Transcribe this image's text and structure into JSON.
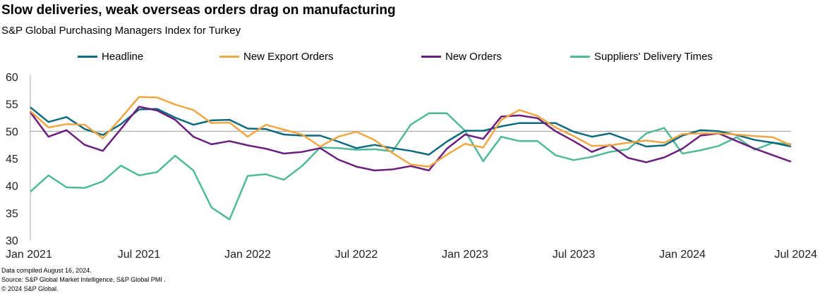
{
  "title": "Slow deliveries, weak overseas orders drag on manufacturing",
  "subtitle": "S&P Global Purchasing Managers Index for Turkey",
  "footnotes": [
    "Data compiled August 16, 2024.",
    "Source: S&P Global Market Intelligence, S&P Global PMI .",
    "© 2024 S&P Global."
  ],
  "chart_data": {
    "type": "line",
    "x_start": "Jan 2021",
    "x_end": "Jul 2024",
    "x_ticks": [
      "Jan 2021",
      "Jul 2021",
      "Jan 2022",
      "Jul 2022",
      "Jan 2023",
      "Jul 2023",
      "Jan 2024",
      "Jul 2024"
    ],
    "y_ticks": [
      30,
      35,
      40,
      45,
      50,
      55,
      60
    ],
    "ylim": [
      30,
      60
    ],
    "reference_line": 50,
    "legend_position": "top",
    "series": [
      {
        "name": "Headline",
        "color": "#0e6a7e",
        "values": [
          54.4,
          51.7,
          52.6,
          50.4,
          49.3,
          51.3,
          54.0,
          54.1,
          52.5,
          51.2,
          52.0,
          52.1,
          50.5,
          50.4,
          49.4,
          49.2,
          49.2,
          48.1,
          46.9,
          47.5,
          46.9,
          46.4,
          45.7,
          48.1,
          50.1,
          50.1,
          50.9,
          51.5,
          51.5,
          51.5,
          49.9,
          49.0,
          49.6,
          48.4,
          47.2,
          47.4,
          49.2,
          50.2,
          50.0,
          49.3,
          48.4,
          47.9,
          47.2
        ]
      },
      {
        "name": "New Export Orders",
        "color": "#f0a743",
        "values": [
          53.7,
          50.7,
          51.3,
          51.2,
          48.7,
          52.4,
          56.3,
          56.2,
          54.9,
          53.9,
          51.5,
          51.6,
          49.0,
          51.2,
          50.3,
          49.4,
          47.2,
          49.0,
          49.9,
          48.4,
          46.0,
          43.9,
          43.5,
          45.7,
          47.7,
          47.0,
          52.1,
          53.9,
          52.8,
          50.7,
          49.1,
          47.3,
          47.4,
          47.9,
          48.3,
          47.9,
          49.5,
          49.6,
          49.6,
          49.4,
          49.1,
          48.9,
          47.4
        ]
      },
      {
        "name": "New Orders",
        "color": "#6b1f7c",
        "values": [
          53.5,
          49.0,
          50.2,
          47.5,
          46.4,
          50.4,
          54.5,
          53.8,
          52.1,
          49.0,
          47.6,
          48.2,
          47.4,
          46.8,
          45.9,
          46.2,
          46.9,
          44.8,
          43.5,
          42.8,
          43.0,
          43.6,
          42.8,
          46.8,
          49.4,
          48.6,
          52.7,
          52.9,
          52.4,
          50.0,
          48.2,
          46.2,
          47.5,
          45.1,
          44.3,
          45.2,
          46.8,
          49.2,
          49.6,
          48.2,
          46.8,
          45.6,
          44.4
        ]
      },
      {
        "name": "Suppliers' Delivery Times",
        "color": "#4fb99b",
        "values": [
          38.9,
          41.9,
          39.7,
          39.6,
          40.8,
          43.7,
          41.9,
          42.5,
          45.5,
          42.8,
          36.0,
          33.8,
          41.8,
          42.1,
          41.1,
          43.6,
          47.0,
          46.9,
          46.6,
          46.7,
          46.3,
          51.2,
          53.3,
          53.3,
          50.1,
          44.5,
          49.0,
          48.2,
          48.2,
          45.6,
          44.7,
          45.3,
          46.2,
          46.7,
          49.6,
          50.6,
          45.9,
          46.5,
          47.3,
          48.9,
          46.6,
          47.9,
          47.6
        ]
      }
    ]
  }
}
